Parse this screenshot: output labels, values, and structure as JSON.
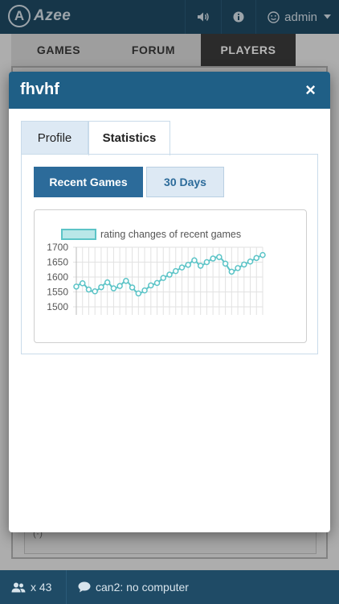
{
  "app": {
    "name": "Azee",
    "logo_letter": "A"
  },
  "topbar": {
    "user": "admin",
    "icons": [
      "volume-icon",
      "info-icon",
      "smiley-icon",
      "caret-down-icon"
    ]
  },
  "nav": {
    "tabs": [
      {
        "label": "GAMES"
      },
      {
        "label": "FORUM"
      },
      {
        "label": "PLAYERS",
        "active": true
      }
    ]
  },
  "modal": {
    "title": "fhvhf",
    "close_label": "×",
    "tabs": [
      {
        "label": "Profile"
      },
      {
        "label": "Statistics",
        "active": true
      }
    ],
    "range_buttons": [
      {
        "label": "Recent Games",
        "active": true
      },
      {
        "label": "30 Days"
      }
    ]
  },
  "chart_data": {
    "type": "line",
    "series": [
      {
        "name": "rating changes of recent games",
        "values": [
          1568,
          1579,
          1558,
          1552,
          1566,
          1582,
          1562,
          1570,
          1587,
          1565,
          1545,
          1555,
          1572,
          1580,
          1597,
          1608,
          1620,
          1632,
          1641,
          1656,
          1638,
          1650,
          1662,
          1667,
          1645,
          1618,
          1630,
          1642,
          1652,
          1664,
          1674
        ]
      }
    ],
    "yticks": [
      1500,
      1550,
      1600,
      1650,
      1700
    ],
    "ylim": [
      1500,
      1700
    ],
    "grid": true,
    "legend": "top",
    "colors": {
      "line": "#5cc4c7",
      "fill": "#b9e7e8",
      "point_fill": "#ffffff"
    }
  },
  "bottombar": {
    "online_count": "x 43",
    "chat_status": "can2: no computer"
  }
}
